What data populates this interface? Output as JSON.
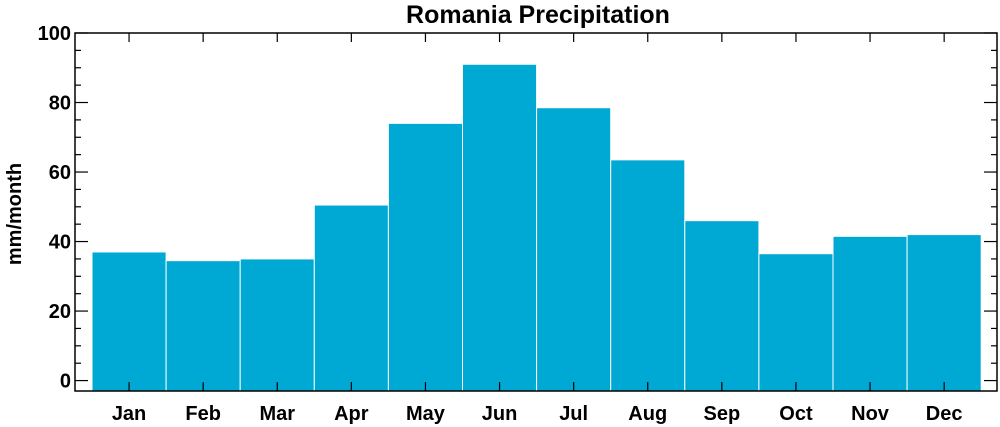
{
  "chart_data": {
    "type": "bar",
    "title": "Romania Precipitation",
    "xlabel": "",
    "ylabel": "mm/month",
    "categories": [
      "Jan",
      "Feb",
      "Mar",
      "Apr",
      "May",
      "Jun",
      "Jul",
      "Aug",
      "Sep",
      "Oct",
      "Nov",
      "Dec"
    ],
    "values": [
      37,
      34.5,
      35,
      50.5,
      74,
      91,
      78.5,
      63.5,
      46,
      36.5,
      41.5,
      42
    ],
    "ylim": [
      -3,
      100
    ],
    "yticks": [
      0,
      20,
      40,
      60,
      80,
      100
    ],
    "grid": false,
    "bar_color": "#00a8d4"
  }
}
